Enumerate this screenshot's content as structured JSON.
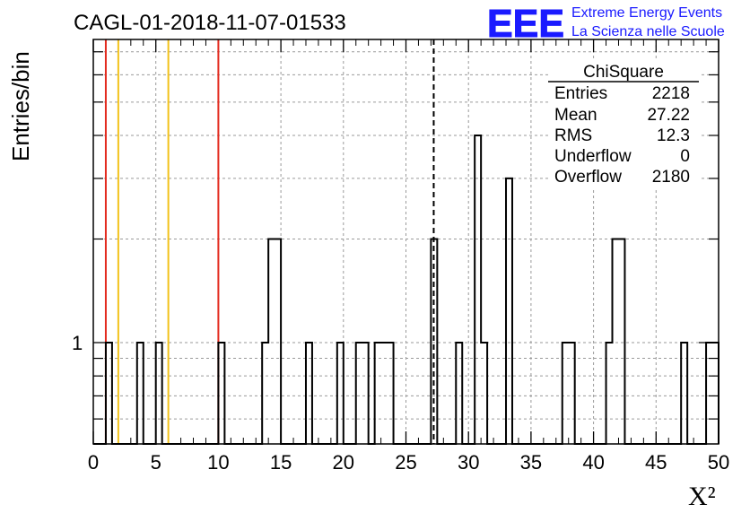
{
  "chart_data": {
    "type": "histogram",
    "title": "CAGL-01-2018-11-07-01533",
    "xlabel": "X²",
    "ylabel": "Entries/bin",
    "xlim": [
      0,
      50
    ],
    "ylog": true,
    "ytick_label": "1",
    "xticks": [
      0,
      5,
      10,
      15,
      20,
      25,
      30,
      35,
      40,
      45,
      50
    ],
    "grid": true,
    "bin_width": 0.5,
    "bins": [
      {
        "x": 1.0,
        "count": 1
      },
      {
        "x": 3.5,
        "count": 1
      },
      {
        "x": 5.0,
        "count": 1
      },
      {
        "x": 10.0,
        "count": 1
      },
      {
        "x": 13.5,
        "count": 1
      },
      {
        "x": 14.0,
        "count": 2
      },
      {
        "x": 14.5,
        "count": 2
      },
      {
        "x": 17.0,
        "count": 1
      },
      {
        "x": 19.5,
        "count": 1
      },
      {
        "x": 21.0,
        "count": 1
      },
      {
        "x": 21.5,
        "count": 1
      },
      {
        "x": 22.5,
        "count": 1
      },
      {
        "x": 23.0,
        "count": 1
      },
      {
        "x": 23.5,
        "count": 1
      },
      {
        "x": 27.0,
        "count": 2
      },
      {
        "x": 29.0,
        "count": 1
      },
      {
        "x": 30.5,
        "count": 4
      },
      {
        "x": 31.0,
        "count": 1
      },
      {
        "x": 33.0,
        "count": 3
      },
      {
        "x": 37.5,
        "count": 1
      },
      {
        "x": 38.0,
        "count": 1
      },
      {
        "x": 41.0,
        "count": 1
      },
      {
        "x": 41.5,
        "count": 2
      },
      {
        "x": 42.0,
        "count": 2
      },
      {
        "x": 47.0,
        "count": 1
      },
      {
        "x": 49.0,
        "count": 1
      },
      {
        "x": 49.5,
        "count": 1
      }
    ],
    "vertical_lines": [
      {
        "x": 1,
        "color": "#e32b1f",
        "style": "solid"
      },
      {
        "x": 10,
        "color": "#e32b1f",
        "style": "solid"
      },
      {
        "x": 2,
        "color": "#f2c21b",
        "style": "solid"
      },
      {
        "x": 6,
        "color": "#f2c21b",
        "style": "solid"
      },
      {
        "x": 27.22,
        "color": "#000000",
        "style": "dashed"
      }
    ],
    "stats_box": {
      "title": "ChiSquare",
      "rows": [
        {
          "label": "Entries",
          "value": "2218"
        },
        {
          "label": "Mean",
          "value": "27.22"
        },
        {
          "label": "RMS",
          "value": "12.3"
        },
        {
          "label": "Underflow",
          "value": "0"
        },
        {
          "label": "Overflow",
          "value": "2180"
        }
      ]
    }
  },
  "logo": {
    "text": "EEE",
    "line1": "Extreme Energy Events",
    "line2": "La Scienza nelle Scuole",
    "color": "#1a1aff"
  }
}
